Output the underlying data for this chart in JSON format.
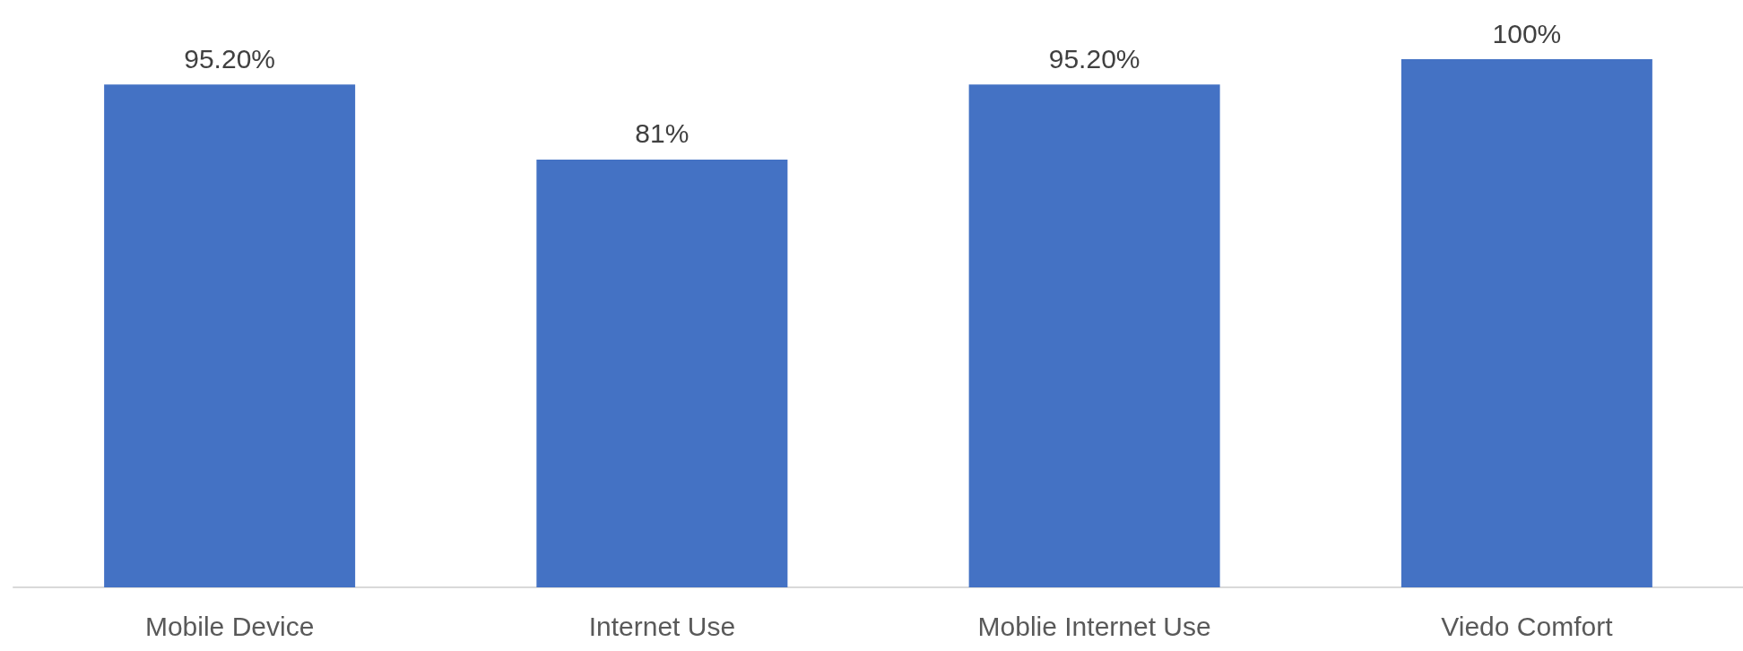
{
  "chart_data": {
    "type": "bar",
    "categories": [
      "Mobile Device",
      "Internet Use",
      "Moblie Internet Use",
      "Viedo Comfort"
    ],
    "values": [
      95.2,
      81,
      95.2,
      100
    ],
    "value_labels": [
      "95.20%",
      "81%",
      "95.20%",
      "100%"
    ],
    "color": "#4472c4",
    "ylim": [
      0,
      100
    ],
    "tick_labels": "x"
  }
}
